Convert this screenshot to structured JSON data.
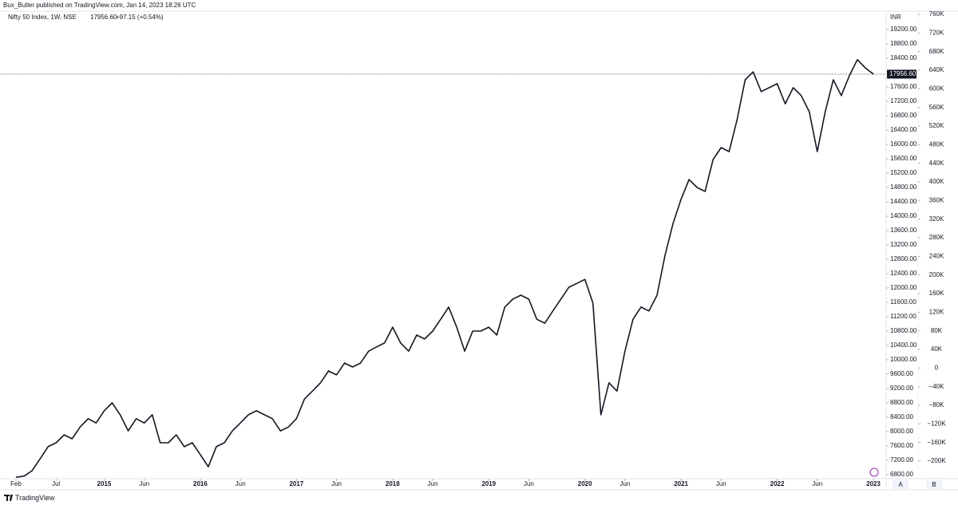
{
  "header": {
    "publisher": "Bux_Butler published on TradingView.com, Jan 14, 2023 18:26 UTC",
    "symbol": "Nifty 50 Index, 1W, NSE",
    "last": "17956.60",
    "change": "+97.15 (+0.54%)"
  },
  "footer": {
    "brand": "TradingView",
    "buttons": [
      "A",
      "B"
    ]
  },
  "chart_data": {
    "type": "line",
    "currency": "INR",
    "x": [
      "2014-02",
      "2014-03",
      "2014-04",
      "2014-05",
      "2014-06",
      "2014-07",
      "2014-08",
      "2014-09",
      "2014-10",
      "2014-11",
      "2014-12",
      "2015-01",
      "2015-02",
      "2015-03",
      "2015-04",
      "2015-05",
      "2015-06",
      "2015-07",
      "2015-08",
      "2015-09",
      "2015-10",
      "2015-11",
      "2015-12",
      "2016-01",
      "2016-02",
      "2016-03",
      "2016-04",
      "2016-05",
      "2016-06",
      "2016-07",
      "2016-08",
      "2016-09",
      "2016-10",
      "2016-11",
      "2016-12",
      "2017-01",
      "2017-02",
      "2017-03",
      "2017-04",
      "2017-05",
      "2017-06",
      "2017-07",
      "2017-08",
      "2017-09",
      "2017-10",
      "2017-11",
      "2017-12",
      "2018-01",
      "2018-02",
      "2018-03",
      "2018-04",
      "2018-05",
      "2018-06",
      "2018-07",
      "2018-08",
      "2018-09",
      "2018-10",
      "2018-11",
      "2018-12",
      "2019-01",
      "2019-02",
      "2019-03",
      "2019-04",
      "2019-05",
      "2019-06",
      "2019-07",
      "2019-08",
      "2019-09",
      "2019-10",
      "2019-11",
      "2019-12",
      "2020-01",
      "2020-02",
      "2020-03",
      "2020-04",
      "2020-05",
      "2020-06",
      "2020-07",
      "2020-08",
      "2020-09",
      "2020-10",
      "2020-11",
      "2020-12",
      "2021-01",
      "2021-02",
      "2021-03",
      "2021-04",
      "2021-05",
      "2021-06",
      "2021-07",
      "2021-08",
      "2021-09",
      "2021-10",
      "2021-11",
      "2021-12",
      "2022-01",
      "2022-02",
      "2022-03",
      "2022-04",
      "2022-05",
      "2022-06",
      "2022-07",
      "2022-08",
      "2022-09",
      "2022-10",
      "2022-11",
      "2022-12",
      "2023-01"
    ],
    "series": [
      {
        "name": "Nifty 50 Index",
        "color": "#131722",
        "values": [
          6730,
          6760,
          6910,
          7240,
          7580,
          7690,
          7910,
          7800,
          8130,
          8360,
          8240,
          8580,
          8800,
          8470,
          8020,
          8360,
          8240,
          8470,
          7690,
          7690,
          7910,
          7580,
          7690,
          7360,
          7020,
          7580,
          7690,
          8020,
          8240,
          8470,
          8580,
          8470,
          8360,
          8020,
          8130,
          8360,
          8910,
          9130,
          9360,
          9690,
          9580,
          9910,
          9800,
          9910,
          10240,
          10360,
          10470,
          10910,
          10470,
          10240,
          10690,
          10580,
          10800,
          11130,
          11470,
          10910,
          10240,
          10800,
          10800,
          10910,
          10690,
          11470,
          11690,
          11800,
          11690,
          11130,
          11020,
          11360,
          11690,
          12020,
          12130,
          12240,
          11580,
          8470,
          9360,
          9130,
          10240,
          11130,
          11470,
          11360,
          11800,
          12910,
          13800,
          14470,
          15020,
          14800,
          14690,
          15580,
          15910,
          15800,
          16690,
          17800,
          18020,
          17470,
          17580,
          17690,
          17130,
          17580,
          17360,
          16910,
          15800,
          16910,
          17800,
          17360,
          17910,
          18360,
          18130,
          17956.6
        ]
      }
    ],
    "last_price": {
      "value": 17956.6,
      "label": "17956.60"
    },
    "xlim": [
      "2013-12",
      "2023-02"
    ],
    "xticks": [
      {
        "value": "2014-02",
        "label": "Feb"
      },
      {
        "value": "2014-07",
        "label": "Jul"
      },
      {
        "value": "2015-01",
        "label": "2015"
      },
      {
        "value": "2015-06",
        "label": "Jun"
      },
      {
        "value": "2016-01",
        "label": "2016"
      },
      {
        "value": "2016-06",
        "label": "Jun"
      },
      {
        "value": "2017-01",
        "label": "2017"
      },
      {
        "value": "2017-06",
        "label": "Jun"
      },
      {
        "value": "2018-01",
        "label": "2018"
      },
      {
        "value": "2018-06",
        "label": "Jun"
      },
      {
        "value": "2019-01",
        "label": "2019"
      },
      {
        "value": "2019-06",
        "label": "Jun"
      },
      {
        "value": "2020-01",
        "label": "2020"
      },
      {
        "value": "2020-06",
        "label": "Jun"
      },
      {
        "value": "2021-01",
        "label": "2021"
      },
      {
        "value": "2021-06",
        "label": "Jun"
      },
      {
        "value": "2022-01",
        "label": "2022"
      },
      {
        "value": "2022-06",
        "label": "Jun"
      },
      {
        "value": "2023-01",
        "label": "2023"
      }
    ],
    "ylim": [
      6689,
      19711
    ],
    "yticks": [
      {
        "value": 6800,
        "label": "6800.00"
      },
      {
        "value": 7200,
        "label": "7200.00"
      },
      {
        "value": 7600,
        "label": "7600.00"
      },
      {
        "value": 8000,
        "label": "8000.00"
      },
      {
        "value": 8400,
        "label": "8400.00"
      },
      {
        "value": 8800,
        "label": "8800.00"
      },
      {
        "value": 9200,
        "label": "9200.00"
      },
      {
        "value": 9600,
        "label": "9600.00"
      },
      {
        "value": 10000,
        "label": "10000.00"
      },
      {
        "value": 10400,
        "label": "10400.00"
      },
      {
        "value": 10800,
        "label": "10800.00"
      },
      {
        "value": 11200,
        "label": "11200.00"
      },
      {
        "value": 11600,
        "label": "11600.00"
      },
      {
        "value": 12000,
        "label": "12000.00"
      },
      {
        "value": 12400,
        "label": "12400.00"
      },
      {
        "value": 12800,
        "label": "12800.00"
      },
      {
        "value": 13200,
        "label": "13200.00"
      },
      {
        "value": 13600,
        "label": "13600.00"
      },
      {
        "value": 14000,
        "label": "14000.00"
      },
      {
        "value": 14400,
        "label": "14400.00"
      },
      {
        "value": 14800,
        "label": "14800.00"
      },
      {
        "value": 15200,
        "label": "15200.00"
      },
      {
        "value": 15600,
        "label": "15600.00"
      },
      {
        "value": 16000,
        "label": "16000.00"
      },
      {
        "value": 16400,
        "label": "16400.00"
      },
      {
        "value": 16800,
        "label": "16800.00"
      },
      {
        "value": 17200,
        "label": "17200.00"
      },
      {
        "value": 17600,
        "label": "17600.00"
      },
      {
        "value": 18400,
        "label": "18400.00"
      },
      {
        "value": 18800,
        "label": "18800.00"
      },
      {
        "value": 19200,
        "label": "19200.00"
      }
    ],
    "y2lim": [
      -237700,
      766900
    ],
    "y2ticks": [
      {
        "value": -200000,
        "label": "−200K"
      },
      {
        "value": -160000,
        "label": "−160K"
      },
      {
        "value": -120000,
        "label": "−120K"
      },
      {
        "value": -80000,
        "label": "−80K"
      },
      {
        "value": -40000,
        "label": "−40K"
      },
      0,
      {
        "value": 40000,
        "label": "40K"
      },
      {
        "value": 80000,
        "label": "80K"
      },
      {
        "value": 120000,
        "label": "120K"
      },
      {
        "value": 160000,
        "label": "160K"
      },
      {
        "value": 200000,
        "label": "200K"
      },
      {
        "value": 240000,
        "label": "240K"
      },
      {
        "value": 280000,
        "label": "280K"
      },
      {
        "value": 320000,
        "label": "320K"
      },
      {
        "value": 360000,
        "label": "360K"
      },
      {
        "value": 400000,
        "label": "400K"
      },
      {
        "value": 440000,
        "label": "440K"
      },
      {
        "value": 480000,
        "label": "480K"
      },
      {
        "value": 520000,
        "label": "520K"
      },
      {
        "value": 560000,
        "label": "560K"
      },
      {
        "value": 600000,
        "label": "600K"
      },
      {
        "value": 640000,
        "label": "640K"
      },
      {
        "value": 680000,
        "label": "680K"
      },
      {
        "value": 720000,
        "label": "720K"
      },
      {
        "value": 760000,
        "label": "760K"
      }
    ],
    "grid": false
  }
}
